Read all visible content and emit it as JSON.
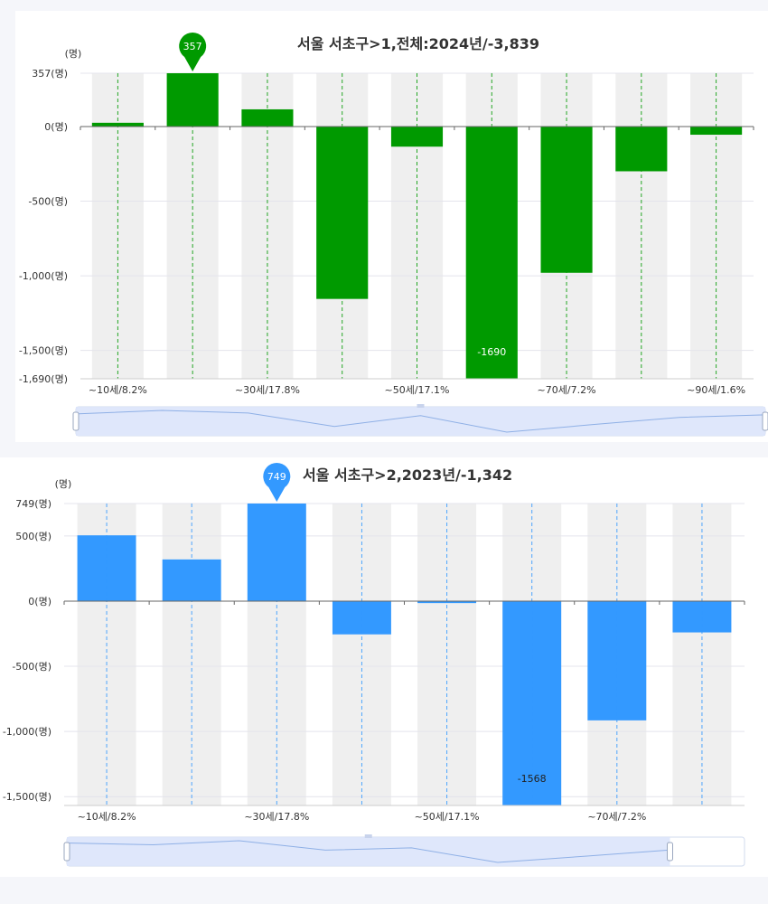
{
  "charts": [
    {
      "title": "서울 서초구>1,전체:2024년/-3,839",
      "unit_label": "(명)",
      "color": "#009a00",
      "marker_color": "#009a00",
      "scroll_color": "#dbe4fb",
      "chart_data": {
        "type": "bar",
        "categories": [
          "~10세/8.2%",
          "",
          "~30세/17.8%",
          "",
          "~50세/17.1%",
          "",
          "~70세/7.2%",
          "",
          "~90세/1.6%"
        ],
        "values": [
          25,
          357,
          115,
          -1155,
          -135,
          -1690,
          -980,
          -300,
          -55
        ],
        "ylim": [
          -1690,
          357
        ],
        "yticks": [
          357,
          0,
          -500,
          -1000,
          -1500,
          -1690
        ],
        "ytick_labels": [
          "357(명)",
          "0(명)",
          "-500(명)",
          "-1,000(명)",
          "-1,500(명)",
          "-1,690(명)"
        ],
        "max_label": "357",
        "min_label": "-1690"
      }
    },
    {
      "title": "서울 서초구>2,2023년/-1,342",
      "unit_label": "(명)",
      "color": "#3399ff",
      "marker_color": "#3399ff",
      "scroll_color": "#dbe4fb",
      "chart_data": {
        "type": "bar",
        "categories": [
          "~10세/8.2%",
          "",
          "~30세/17.8%",
          "",
          "~50세/17.1%",
          "",
          "~70세/7.2%",
          ""
        ],
        "values": [
          505,
          320,
          749,
          -255,
          -15,
          -1568,
          -915,
          -240
        ],
        "ylim": [
          -1568,
          749
        ],
        "yticks": [
          749,
          500,
          0,
          -500,
          -1000,
          -1500
        ],
        "ytick_labels": [
          "749(명)",
          "500(명)",
          "0(명)",
          "-500(명)",
          "-1,000(명)",
          "-1,500(명)"
        ],
        "max_label": "749",
        "min_label": "-1568"
      }
    }
  ]
}
